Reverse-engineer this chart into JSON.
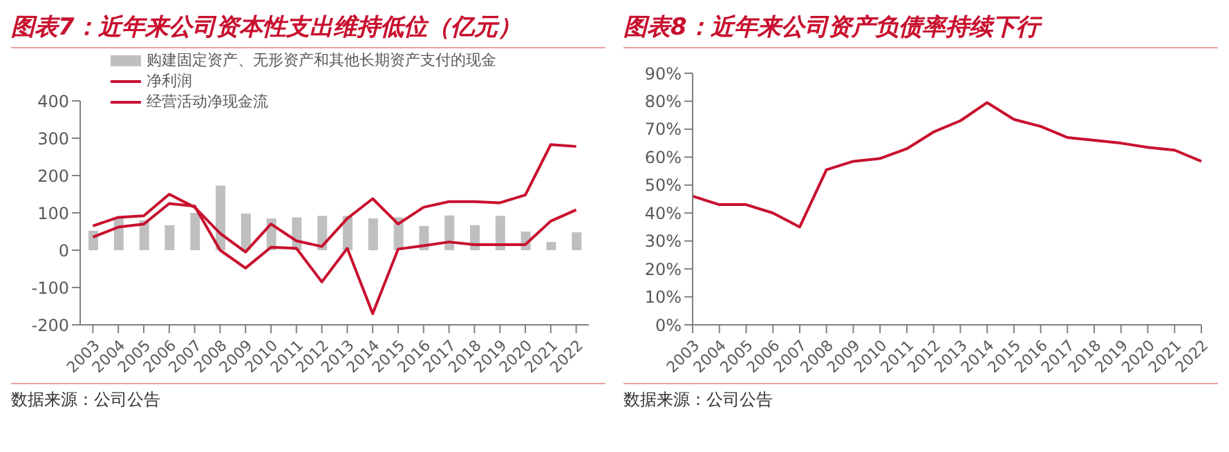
{
  "chart_data": [
    {
      "type": "bar",
      "title": "图表7：近年来公司资本性支出维持低位（亿元）",
      "categories": [
        "2003",
        "2004",
        "2005",
        "2006",
        "2007",
        "2008",
        "2009",
        "2010",
        "2011",
        "2012",
        "2013",
        "2014",
        "2015",
        "2016",
        "2017",
        "2018",
        "2019",
        "2020",
        "2021",
        "2022"
      ],
      "series": [
        {
          "name": "购建固定资产、无形资产和其他长期资产支付的现金",
          "color": "#bfbfbf",
          "values": [
            52,
            88,
            80,
            67,
            100,
            173,
            98,
            85,
            88,
            92,
            92,
            85,
            88,
            65,
            93,
            67,
            92,
            50,
            22,
            48
          ]
        },
        {
          "name": "净利润",
          "type": "line",
          "color": "#c8102e",
          "values": [
            35,
            62,
            70,
            125,
            118,
            0,
            -48,
            8,
            5,
            -85,
            5,
            -170,
            3,
            12,
            22,
            15,
            15,
            15,
            78,
            108
          ]
        },
        {
          "name": "经营活动净现金流",
          "type": "line",
          "color": "#c8102e",
          "values": [
            65,
            88,
            92,
            150,
            115,
            45,
            -5,
            70,
            25,
            10,
            85,
            138,
            70,
            115,
            130,
            130,
            127,
            148,
            283,
            278
          ]
        }
      ],
      "ylim": [
        -200,
        400
      ],
      "yticks": [
        -200,
        -100,
        0,
        100,
        200,
        300,
        400
      ],
      "legend": "top left",
      "annotations": [
        "数据来源：公司公告"
      ]
    },
    {
      "type": "line",
      "title": "图表8：近年来公司资产负债率持续下行",
      "categories": [
        "2003",
        "2004",
        "2005",
        "2006",
        "2007",
        "2008",
        "2009",
        "2010",
        "2011",
        "2012",
        "2013",
        "2014",
        "2015",
        "2016",
        "2017",
        "2018",
        "2019",
        "2020",
        "2021",
        "2022"
      ],
      "series": [
        {
          "color": "#c8102e",
          "values": [
            46,
            43,
            43,
            40,
            35,
            55.5,
            58.5,
            59.5,
            63,
            69,
            73,
            79.5,
            73.5,
            71,
            67,
            66,
            65,
            63.5,
            62.5,
            58.5
          ]
        }
      ],
      "ylim": [
        0,
        90
      ],
      "yticks": [
        {
          "value": 0,
          "label": "0%"
        },
        {
          "value": 10,
          "label": "10%"
        },
        {
          "value": 20,
          "label": "20%"
        },
        {
          "value": 30,
          "label": "30%"
        },
        {
          "value": 40,
          "label": "40%"
        },
        {
          "value": 50,
          "label": "50%"
        },
        {
          "value": 60,
          "label": "60%"
        },
        {
          "value": 70,
          "label": "70%"
        },
        {
          "value": 80,
          "label": "80%"
        },
        {
          "value": 90,
          "label": "90%"
        }
      ],
      "annotations": [
        "数据来源：公司公告"
      ]
    }
  ]
}
